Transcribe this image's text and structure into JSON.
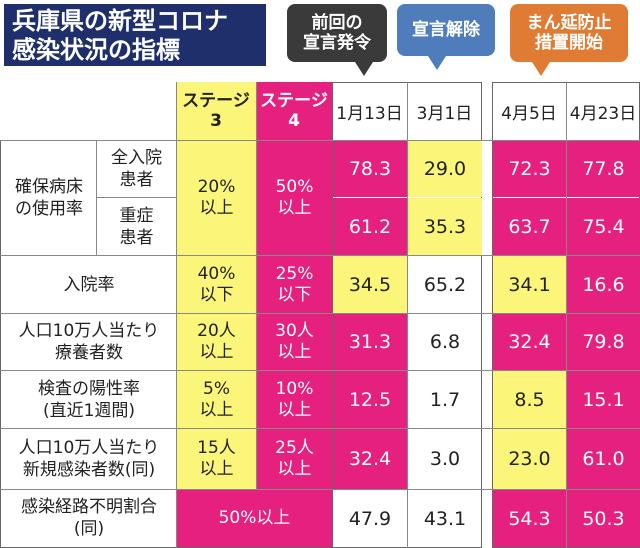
{
  "title": {
    "line1": "兵庫県の新型コロナ",
    "line2": "感染状況の指標"
  },
  "callouts": {
    "prev": {
      "line1": "前回の",
      "line2": "宣言発令",
      "color": "#3a3a3a"
    },
    "lift": {
      "line1": "宣言解除",
      "color": "#4f7cba"
    },
    "prevent": {
      "line1": "まん延防止",
      "line2": "措置開始",
      "color": "#e07b33"
    }
  },
  "stages": {
    "s3": {
      "line1": "ステージ",
      "line2": "3"
    },
    "s4": {
      "line1": "ステージ",
      "line2": "4"
    }
  },
  "dates": [
    "1月13日",
    "3月1日",
    "4月5日",
    "4月23日"
  ],
  "rows": {
    "bed": {
      "group": {
        "line1": "確保病床",
        "line2": "の使用率"
      },
      "sub1": {
        "line1": "全入院",
        "line2": "患者"
      },
      "sub2": {
        "line1": "重症",
        "line2": "患者"
      },
      "s3": {
        "line1": "20%",
        "line2": "以上"
      },
      "s4": {
        "line1": "50%",
        "line2": "以上"
      },
      "all": [
        "78.3",
        "29.0",
        "72.3",
        "77.8"
      ],
      "severe": [
        "61.2",
        "35.3",
        "63.7",
        "75.4"
      ]
    },
    "hosp": {
      "label": "入院率",
      "s3": {
        "line1": "40%",
        "line2": "以下"
      },
      "s4": {
        "line1": "25%",
        "line2": "以下"
      },
      "values": [
        "34.5",
        "65.2",
        "34.1",
        "16.6"
      ]
    },
    "care": {
      "label1": "人口10万人当たり",
      "label2": "療養者数",
      "s3": {
        "line1": "20人",
        "line2": "以上"
      },
      "s4": {
        "line1": "30人",
        "line2": "以上"
      },
      "values": [
        "31.3",
        "6.8",
        "32.4",
        "79.8"
      ]
    },
    "pos": {
      "label1": "検査の陽性率",
      "label2": "(直近1週間)",
      "s3": {
        "line1": "5%",
        "line2": "以上"
      },
      "s4": {
        "line1": "10%",
        "line2": "以上"
      },
      "values": [
        "12.5",
        "1.7",
        "8.5",
        "15.1"
      ]
    },
    "new": {
      "label1": "人口10万人当たり",
      "label2": "新規感染者数(同)",
      "s3": {
        "line1": "15人",
        "line2": "以上"
      },
      "s4": {
        "line1": "25人",
        "line2": "以上"
      },
      "values": [
        "32.4",
        "3.0",
        "23.0",
        "61.0"
      ]
    },
    "unk": {
      "label1": "感染経路不明割合",
      "label2": "(同)",
      "stage": "50%以上",
      "values": [
        "47.9",
        "43.1",
        "54.3",
        "50.3"
      ]
    }
  },
  "colors": {
    "yellow": "#fbf579",
    "magenta": "#e6207f",
    "navy": "#1f2f6b"
  }
}
